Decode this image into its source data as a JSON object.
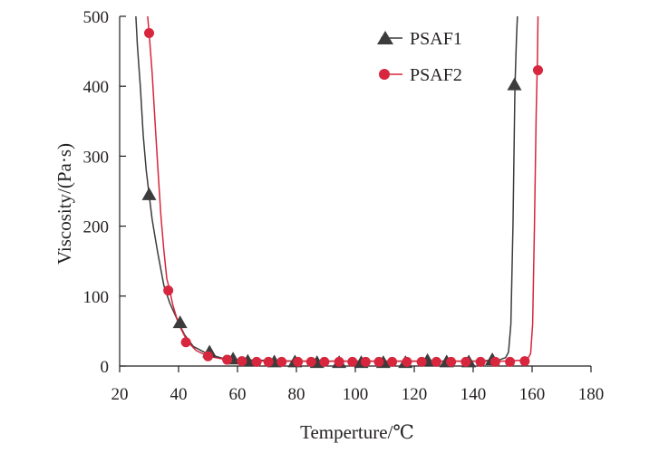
{
  "chart_data": {
    "type": "line",
    "xlabel": "Temperture/℃",
    "ylabel": "Viscosity/(Pa·s)",
    "xlim": [
      20,
      180
    ],
    "ylim": [
      0,
      500
    ],
    "x_ticks": [
      20,
      40,
      60,
      80,
      100,
      120,
      140,
      160,
      180
    ],
    "y_ticks": [
      0,
      100,
      200,
      300,
      400,
      500
    ],
    "x_tick_labels": [
      "20",
      "40",
      "60",
      "80",
      "100",
      "120",
      "140",
      "160",
      "180"
    ],
    "y_tick_labels": [
      "0",
      "100",
      "200",
      "300",
      "400",
      "500"
    ],
    "grid": false,
    "legend_position": "top-right",
    "series": [
      {
        "name": "PSAF1",
        "marker": "triangle",
        "color": "#3c3c3c",
        "points": [
          [
            25.5,
            500
          ],
          [
            26.0,
            460
          ],
          [
            26.5,
            430
          ],
          [
            27.0,
            400
          ],
          [
            28.0,
            330
          ],
          [
            29.0,
            280
          ],
          [
            30.0,
            245
          ],
          [
            31.0,
            210
          ],
          [
            32.0,
            185
          ],
          [
            33.0,
            160
          ],
          [
            35.0,
            115
          ],
          [
            37.0,
            90
          ],
          [
            40.0,
            62
          ],
          [
            42.0,
            45
          ],
          [
            45.0,
            28
          ],
          [
            50.0,
            17
          ],
          [
            55.0,
            11
          ],
          [
            60.0,
            9
          ],
          [
            70.0,
            8
          ],
          [
            80.0,
            7
          ],
          [
            90.0,
            7
          ],
          [
            100.0,
            7
          ],
          [
            110.0,
            7
          ],
          [
            120.0,
            7
          ],
          [
            130.0,
            7
          ],
          [
            140.0,
            7
          ],
          [
            146.0,
            8
          ],
          [
            149.0,
            9
          ],
          [
            151.0,
            12
          ],
          [
            152.0,
            20
          ],
          [
            152.8,
            60
          ],
          [
            153.5,
            200
          ],
          [
            154.2,
            400
          ],
          [
            154.7,
            470
          ],
          [
            155.0,
            500
          ]
        ],
        "markers": [
          [
            30.0,
            245
          ],
          [
            40.5,
            62
          ],
          [
            50.5,
            20
          ],
          [
            58.5,
            10
          ],
          [
            63.5,
            7
          ],
          [
            72.5,
            6
          ],
          [
            79.5,
            6
          ],
          [
            87.0,
            5
          ],
          [
            94.5,
            5
          ],
          [
            102.0,
            5
          ],
          [
            109.5,
            5
          ],
          [
            117.0,
            5
          ],
          [
            124.5,
            8
          ],
          [
            131.0,
            6
          ],
          [
            138.5,
            6
          ],
          [
            146.5,
            9
          ],
          [
            154.0,
            402
          ]
        ]
      },
      {
        "name": "PSAF2",
        "marker": "circle",
        "color": "#d7263d",
        "points": [
          [
            29.5,
            500
          ],
          [
            30.0,
            476
          ],
          [
            31.0,
            420
          ],
          [
            32.0,
            350
          ],
          [
            33.0,
            280
          ],
          [
            34.0,
            215
          ],
          [
            35.0,
            165
          ],
          [
            36.0,
            125
          ],
          [
            37.0,
            108
          ],
          [
            38.0,
            88
          ],
          [
            40.0,
            60
          ],
          [
            43.0,
            35
          ],
          [
            46.0,
            22
          ],
          [
            50.0,
            14
          ],
          [
            55.0,
            10
          ],
          [
            60.0,
            8
          ],
          [
            70.0,
            7
          ],
          [
            80.0,
            7
          ],
          [
            90.0,
            7
          ],
          [
            100.0,
            7
          ],
          [
            110.0,
            7
          ],
          [
            120.0,
            7
          ],
          [
            130.0,
            7
          ],
          [
            140.0,
            7
          ],
          [
            150.0,
            7
          ],
          [
            156.0,
            8
          ],
          [
            158.5,
            10
          ],
          [
            159.5,
            18
          ],
          [
            160.2,
            60
          ],
          [
            160.8,
            200
          ],
          [
            161.4,
            360
          ],
          [
            161.8,
            440
          ],
          [
            162.0,
            500
          ]
        ],
        "markers": [
          [
            30.0,
            476
          ],
          [
            36.5,
            108
          ],
          [
            42.5,
            34
          ],
          [
            50.0,
            14
          ],
          [
            56.5,
            9
          ],
          [
            61.5,
            7
          ],
          [
            66.5,
            6
          ],
          [
            70.5,
            6
          ],
          [
            75.0,
            6
          ],
          [
            80.5,
            6
          ],
          [
            85.0,
            6
          ],
          [
            89.5,
            6
          ],
          [
            94.5,
            6
          ],
          [
            99.0,
            6
          ],
          [
            103.5,
            6
          ],
          [
            108.0,
            6
          ],
          [
            112.5,
            6
          ],
          [
            117.5,
            6
          ],
          [
            122.5,
            6
          ],
          [
            127.5,
            6
          ],
          [
            132.5,
            6
          ],
          [
            137.5,
            6
          ],
          [
            142.5,
            6
          ],
          [
            147.5,
            6
          ],
          [
            152.5,
            6
          ],
          [
            157.5,
            7
          ],
          [
            162.0,
            423
          ]
        ]
      }
    ]
  }
}
